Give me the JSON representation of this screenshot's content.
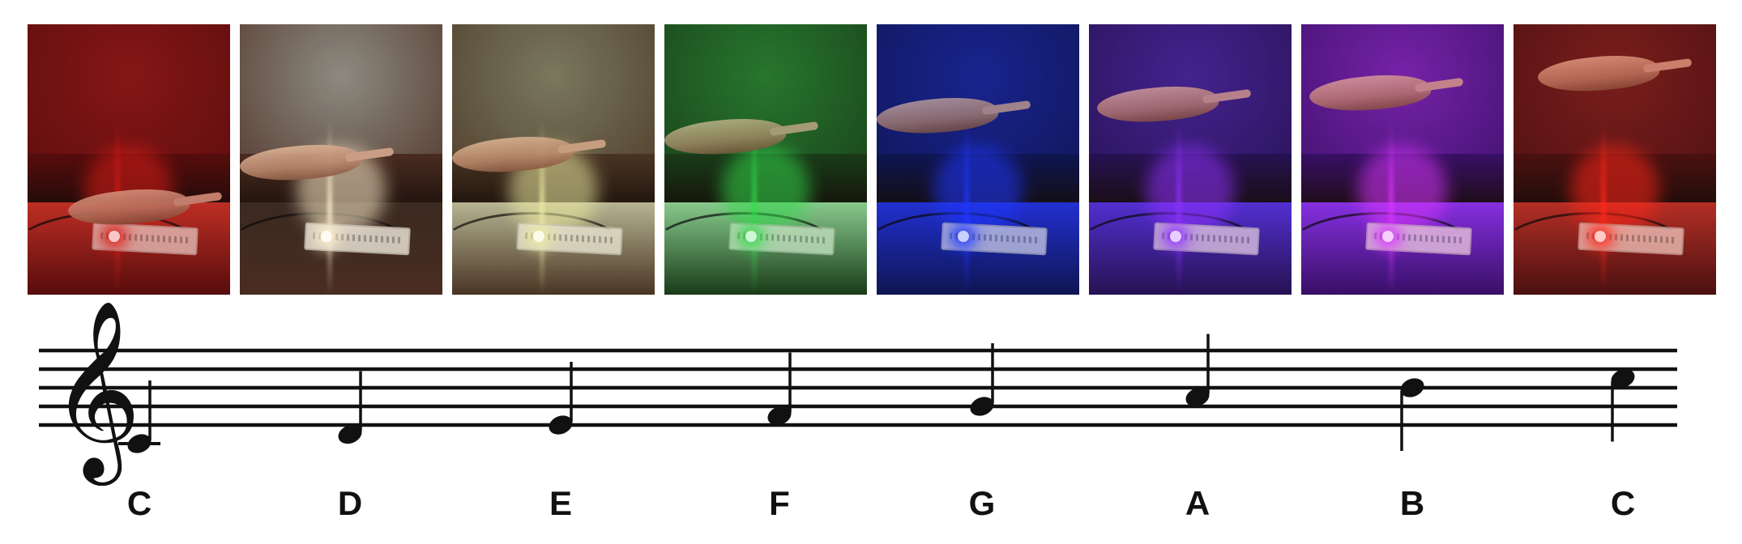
{
  "photos": [
    {
      "name": "red-led-note-c",
      "light_color": "#e0241e",
      "wall_color": "#8a1c1c",
      "desk_color": "#5a0f0f",
      "surface_color": "#c43a2e"
    },
    {
      "name": "white-led-note-d",
      "light_color": "#fff3d6",
      "wall_color": "#8d8c86",
      "desk_color": "#4a2c22",
      "surface_color": "#3a2a22"
    },
    {
      "name": "yellow-led-note-e",
      "light_color": "#f2f0b0",
      "wall_color": "#7b7a66",
      "desk_color": "#4a3526",
      "surface_color": "#b8b79f"
    },
    {
      "name": "green-led-note-f",
      "light_color": "#3fe05a",
      "wall_color": "#2f7a36",
      "desk_color": "#1e3d1c",
      "surface_color": "#a8d0a8"
    },
    {
      "name": "blue-led-note-g",
      "light_color": "#2744ff",
      "wall_color": "#1f2b8e",
      "desk_color": "#121a52",
      "surface_color": "#2a3ad0"
    },
    {
      "name": "purple-led-note-a",
      "light_color": "#a03cff",
      "wall_color": "#4a2a8e",
      "desk_color": "#2a1552",
      "surface_color": "#5a3ad0"
    },
    {
      "name": "magenta-led-note-b",
      "light_color": "#e040ff",
      "wall_color": "#7a2aa8",
      "desk_color": "#3a1266",
      "surface_color": "#8a3ae0"
    },
    {
      "name": "red-led-note-c-high",
      "light_color": "#ff3020",
      "wall_color": "#7a2424",
      "desk_color": "#4a1414",
      "surface_color": "#b43a30"
    }
  ],
  "notes": [
    {
      "label": "C",
      "position": -2
    },
    {
      "label": "D",
      "position": -1
    },
    {
      "label": "E",
      "position": 0
    },
    {
      "label": "F",
      "position": 1
    },
    {
      "label": "G",
      "position": 2
    },
    {
      "label": "A",
      "position": 3
    },
    {
      "label": "B",
      "position": 4
    },
    {
      "label": "C",
      "position": 5
    }
  ],
  "clef": "treble-clef",
  "staff_color": "#111111"
}
